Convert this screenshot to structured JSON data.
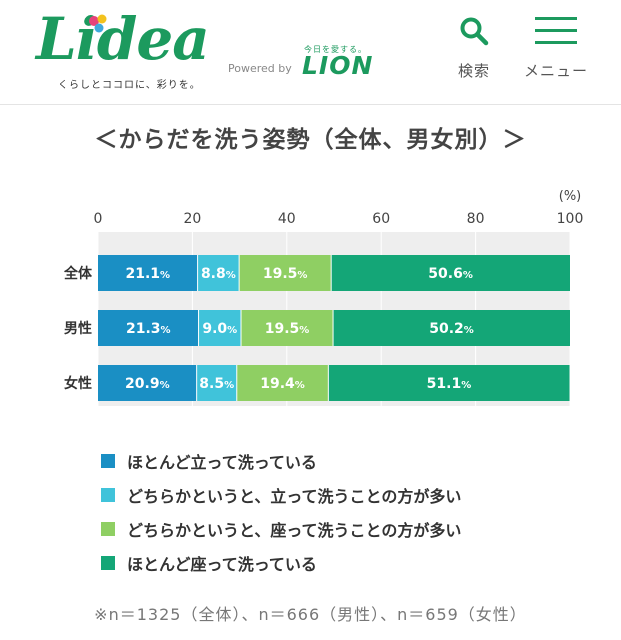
{
  "header": {
    "logo_text": "Lidea",
    "tagline": "くらしとココロに、彩りを。",
    "powered_by": "Powered by",
    "lion_slogan": "今日を愛する。",
    "lion_logo": "LION",
    "search_label": "検索",
    "menu_label": "メニュー",
    "brand_color": "#1c9a5e"
  },
  "chart_data": {
    "type": "bar",
    "orientation": "horizontal",
    "stacked": true,
    "title": "＜からだを洗う姿勢（全体、男女別）＞",
    "unit_label": "(%)",
    "xlim": [
      0,
      100
    ],
    "x_ticks": [
      "0",
      "20",
      "40",
      "60",
      "80",
      "100"
    ],
    "categories": [
      "全体",
      "男性",
      "女性"
    ],
    "series": [
      {
        "name": "ほとんど立って洗っている",
        "color": "#1a8fc4",
        "values": [
          21.1,
          21.3,
          20.9
        ]
      },
      {
        "name": "どちらかというと、立って洗うことの方が多い",
        "color": "#40c3da",
        "values": [
          8.8,
          9.0,
          8.5
        ]
      },
      {
        "name": "どちらかというと、座って洗うことの方が多い",
        "color": "#8fcf63",
        "values": [
          19.5,
          19.5,
          19.4
        ]
      },
      {
        "name": "ほとんど座って洗っている",
        "color": "#14a677",
        "values": [
          50.6,
          50.2,
          51.1
        ]
      }
    ],
    "value_suffix": "%",
    "grid": true,
    "legend_position": "bottom"
  },
  "footnote": "※n＝1325（全体）、n＝666（男性）、n＝659（女性）"
}
